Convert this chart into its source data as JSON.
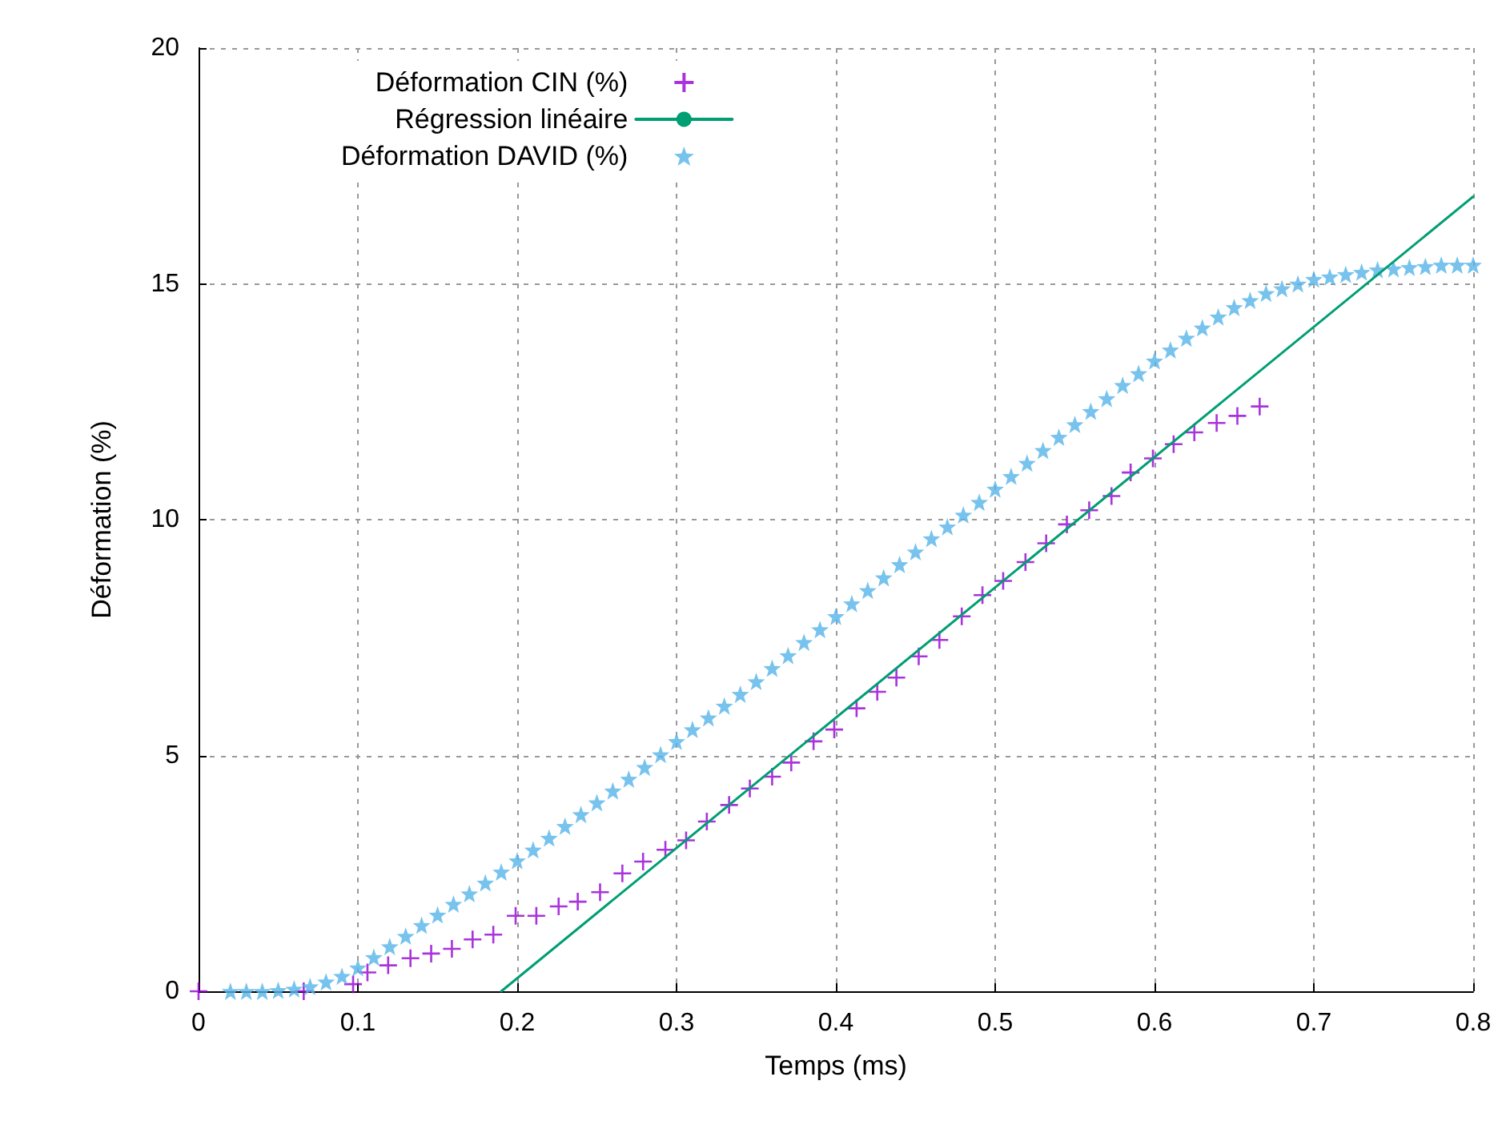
{
  "chart_data": {
    "type": "scatter",
    "xlabel": "Temps (ms)",
    "ylabel": "Déformation (%)",
    "xlim": [
      0,
      0.8
    ],
    "ylim": [
      0,
      20
    ],
    "xticks": [
      0,
      0.1,
      0.2,
      0.3,
      0.4,
      0.5,
      0.6,
      0.7,
      0.8
    ],
    "yticks": [
      0,
      5,
      10,
      15,
      20
    ],
    "grid": true,
    "legend": "top left",
    "series": [
      {
        "name": "Déformation CIN (%)",
        "marker": "cross",
        "color": "#9400d3",
        "x": [
          0,
          0.066,
          0.097,
          0.106,
          0.119,
          0.133,
          0.146,
          0.159,
          0.172,
          0.185,
          0.199,
          0.212,
          0.226,
          0.238,
          0.252,
          0.266,
          0.279,
          0.293,
          0.306,
          0.319,
          0.333,
          0.346,
          0.36,
          0.372,
          0.386,
          0.399,
          0.413,
          0.426,
          0.438,
          0.452,
          0.465,
          0.479,
          0.492,
          0.505,
          0.519,
          0.532,
          0.545,
          0.559,
          0.573,
          0.585,
          0.599,
          0.612,
          0.625,
          0.639,
          0.652,
          0.666
        ],
        "values": [
          0,
          0,
          0.15,
          0.4,
          0.55,
          0.7,
          0.8,
          0.9,
          1.1,
          1.2,
          1.6,
          1.6,
          1.8,
          1.9,
          2.1,
          2.5,
          2.75,
          3.0,
          3.2,
          3.6,
          3.95,
          4.3,
          4.55,
          4.85,
          5.3,
          5.55,
          6.0,
          6.35,
          6.65,
          7.1,
          7.45,
          7.95,
          8.4,
          8.7,
          9.1,
          9.5,
          9.9,
          10.2,
          10.5,
          11.0,
          11.3,
          11.6,
          11.85,
          12.05,
          12.2,
          12.4
        ]
      },
      {
        "name": "Régression linéaire",
        "type": "line",
        "marker": "none",
        "line_style": "solid",
        "color": "#009e73",
        "x": [
          0.19,
          0.8
        ],
        "values": [
          0,
          16.85
        ]
      },
      {
        "name": "Déformation DAVID (%)",
        "marker": "star",
        "color": "#56b4e9",
        "x": [
          0.02,
          0.03,
          0.04,
          0.05,
          0.06,
          0.07,
          0.08,
          0.09,
          0.1,
          0.11,
          0.12,
          0.13,
          0.14,
          0.15,
          0.16,
          0.17,
          0.18,
          0.19,
          0.2,
          0.21,
          0.22,
          0.23,
          0.24,
          0.25,
          0.26,
          0.27,
          0.28,
          0.29,
          0.3,
          0.31,
          0.32,
          0.33,
          0.34,
          0.35,
          0.36,
          0.37,
          0.38,
          0.39,
          0.4,
          0.41,
          0.42,
          0.43,
          0.44,
          0.45,
          0.46,
          0.47,
          0.48,
          0.49,
          0.5,
          0.51,
          0.52,
          0.53,
          0.54,
          0.55,
          0.56,
          0.57,
          0.58,
          0.59,
          0.6,
          0.61,
          0.62,
          0.63,
          0.64,
          0.65,
          0.66,
          0.67,
          0.68,
          0.69,
          0.7,
          0.71,
          0.72,
          0.73,
          0.74,
          0.75,
          0.76,
          0.77,
          0.78,
          0.79,
          0.8
        ],
        "values": [
          0,
          0,
          0,
          0.02,
          0.05,
          0.1,
          0.2,
          0.32,
          0.5,
          0.72,
          0.95,
          1.17,
          1.4,
          1.62,
          1.85,
          2.07,
          2.3,
          2.53,
          2.77,
          3.0,
          3.25,
          3.5,
          3.75,
          4.0,
          4.25,
          4.5,
          4.75,
          5.02,
          5.3,
          5.55,
          5.8,
          6.05,
          6.3,
          6.57,
          6.85,
          7.12,
          7.4,
          7.67,
          7.95,
          8.22,
          8.5,
          8.77,
          9.05,
          9.32,
          9.6,
          9.85,
          10.1,
          10.37,
          10.65,
          10.92,
          11.2,
          11.47,
          11.75,
          12.02,
          12.3,
          12.57,
          12.85,
          13.1,
          13.37,
          13.6,
          13.85,
          14.07,
          14.3,
          14.5,
          14.65,
          14.8,
          14.9,
          15.0,
          15.1,
          15.15,
          15.2,
          15.25,
          15.3,
          15.32,
          15.35,
          15.37,
          15.4,
          15.4,
          15.4
        ]
      }
    ]
  }
}
